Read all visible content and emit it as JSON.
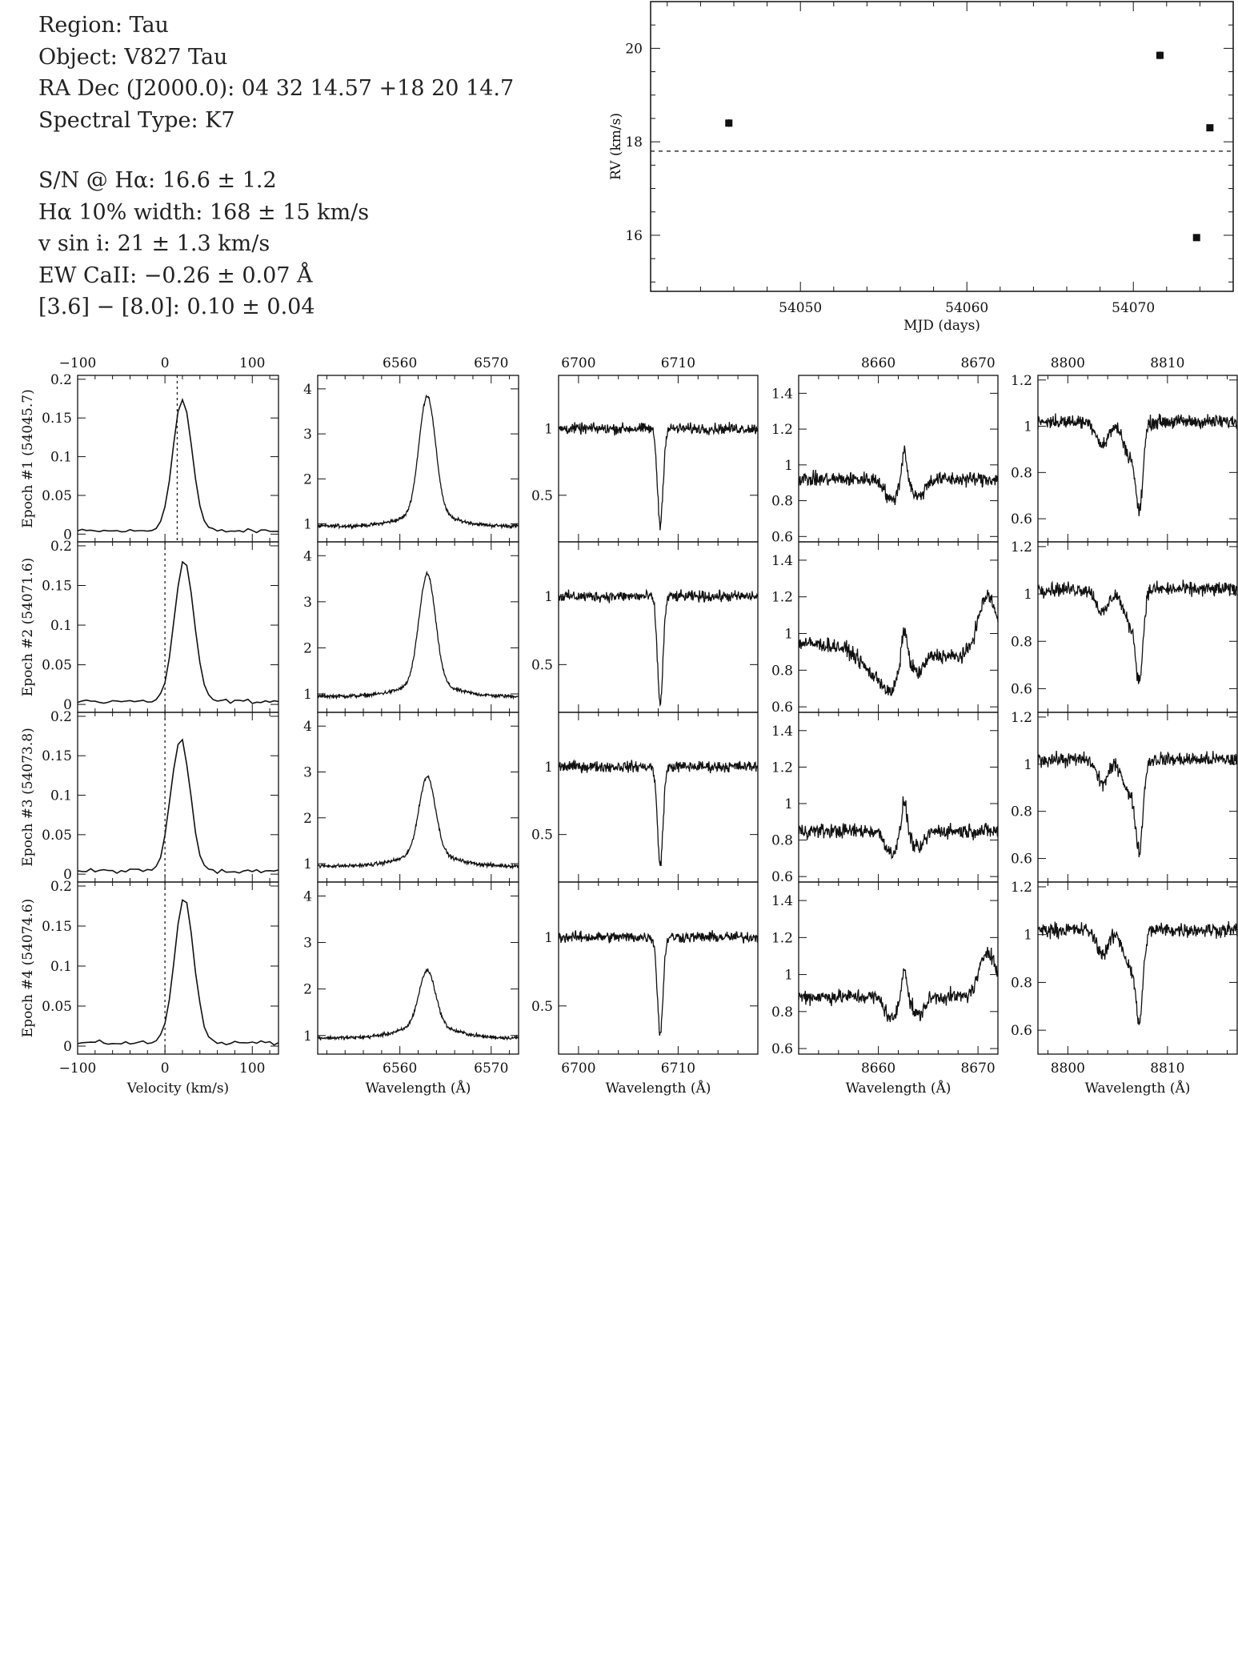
{
  "info": {
    "region": "Region: Tau",
    "object": "Object: V827 Tau",
    "radec": "RA Dec (J2000.0): 04 32 14.57 +18 20 14.7",
    "sptype": "Spectral Type: K7",
    "sn": "S/N @ Hα: 16.6 ± 1.2",
    "ha_width": "Hα 10% width: 168 ± 15 km/s",
    "vsini": "v sin i: 21 ± 1.3 km/s",
    "ew": "EW CaII: −0.26 ± 0.07 Å",
    "irac": "[3.6] − [8.0]: 0.10 ± 0.04"
  },
  "chart_data": [
    {
      "type": "scatter",
      "xlabel": "MJD (days)",
      "ylabel": "RV (km/s)",
      "xlim": [
        54041,
        54076
      ],
      "ylim": [
        14.8,
        21.0
      ],
      "xticks": [
        54050,
        54060,
        54070
      ],
      "yticks": [
        16,
        18,
        20
      ],
      "points": [
        {
          "x": 54045.7,
          "y": 18.4,
          "err": 0.08
        },
        {
          "x": 54071.6,
          "y": 19.85,
          "err": 0.08
        },
        {
          "x": 54073.8,
          "y": 15.95,
          "err": 0.06
        },
        {
          "x": 54074.6,
          "y": 18.3,
          "err": 0.06
        }
      ],
      "reference_line": 17.8
    },
    {
      "type": "line",
      "panel_grid": "4 epochs x 5 spectral windows",
      "row_labels": [
        "Epoch #1 (54045.7)",
        "Epoch #2 (54071.6)",
        "Epoch #3 (54073.8)",
        "Epoch #4 (54074.6)"
      ],
      "columns": [
        {
          "kind": "velocity",
          "xlabel": "Velocity (km/s)",
          "xlim": [
            -100,
            130
          ],
          "xticks": [
            -100,
            0,
            100
          ],
          "ylim": [
            -0.01,
            0.205
          ],
          "yticks": [
            0,
            0.05,
            0.1,
            0.15,
            0.2
          ],
          "ytick_labels": [
            "0",
            "0.05",
            "0.1",
            "0.15",
            "0.2"
          ],
          "vline": [
            14,
            0,
            0,
            0
          ],
          "profiles": [
            {
              "peak": 0.17,
              "center": 20,
              "width": 11
            },
            {
              "peak": 0.178,
              "center": 22,
              "width": 11
            },
            {
              "peak": 0.168,
              "center": 18,
              "width": 11
            },
            {
              "peak": 0.182,
              "center": 22,
              "width": 11
            }
          ]
        },
        {
          "kind": "emission",
          "xlabel": "Wavelength (Å)",
          "xlim": [
            6551,
            6573
          ],
          "xticks": [
            6560,
            6570
          ],
          "ylim": [
            0.6,
            4.3
          ],
          "yticks": [
            1,
            2,
            3,
            4
          ],
          "line_center": 6563,
          "peaks": [
            3.85,
            3.6,
            2.9,
            2.4
          ]
        },
        {
          "kind": "absorption",
          "xlabel": "Wavelength (Å)",
          "xlim": [
            6698,
            6718
          ],
          "xticks": [
            6700,
            6710
          ],
          "ylim": [
            0.15,
            1.4
          ],
          "yticks": [
            0.5,
            1
          ],
          "line_center": 6708.2,
          "depths": [
            0.28,
            0.22,
            0.28,
            0.3
          ]
        },
        {
          "kind": "calcium",
          "xlabel": "Wavelength (Å)",
          "xlim": [
            8652,
            8672
          ],
          "xticks": [
            8660,
            8670
          ],
          "ylim": [
            0.57,
            1.5
          ],
          "yticks": [
            0.6,
            0.8,
            1,
            1.2,
            1.4
          ],
          "line_center": 8662.1
        },
        {
          "kind": "absorption2",
          "xlabel": "Wavelength (Å)",
          "xlim": [
            8797,
            8817
          ],
          "xticks": [
            8800,
            8810
          ],
          "ylim": [
            0.5,
            1.22
          ],
          "yticks": [
            0.6,
            0.8,
            1,
            1.2
          ],
          "line_center": 8807.2
        }
      ]
    }
  ]
}
